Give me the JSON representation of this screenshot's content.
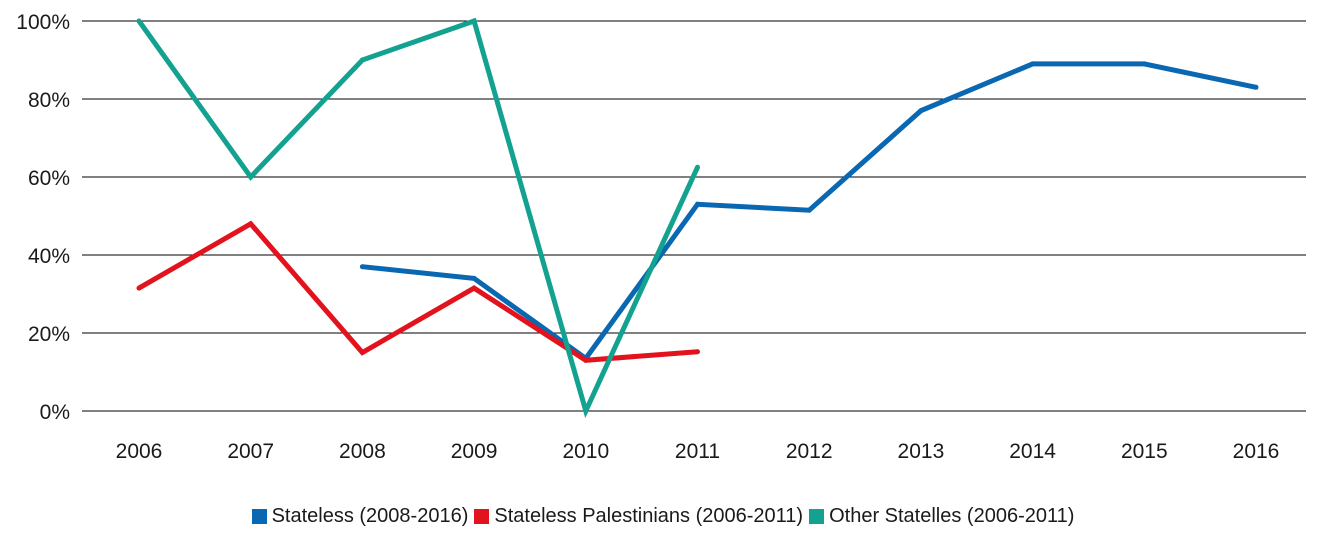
{
  "chart_data": {
    "type": "line",
    "title": "",
    "xlabel": "",
    "ylabel": "",
    "categories": [
      "2006",
      "2007",
      "2008",
      "2009",
      "2010",
      "2011",
      "2012",
      "2013",
      "2014",
      "2015",
      "2016"
    ],
    "y_ticks": [
      "0%",
      "20%",
      "40%",
      "60%",
      "80%",
      "100%"
    ],
    "ylim": [
      0,
      100
    ],
    "grid": "horizontal",
    "legend_position": "bottom",
    "series": [
      {
        "name": "Stateless (2008-2016)",
        "color": "#0a67b2",
        "values": [
          null,
          null,
          37,
          34,
          13.5,
          53,
          51.5,
          77,
          89,
          89,
          83
        ]
      },
      {
        "name": "Stateless Palestinians (2006-2011)",
        "color": "#e3131e",
        "values": [
          31.5,
          48,
          15,
          31.5,
          13,
          15.2,
          null,
          null,
          null,
          null,
          null
        ]
      },
      {
        "name": "Other Statelles (2006-2011)",
        "color": "#13a28f",
        "values": [
          100,
          60,
          90,
          100,
          0,
          62.5,
          null,
          null,
          null,
          null,
          null
        ]
      }
    ]
  }
}
